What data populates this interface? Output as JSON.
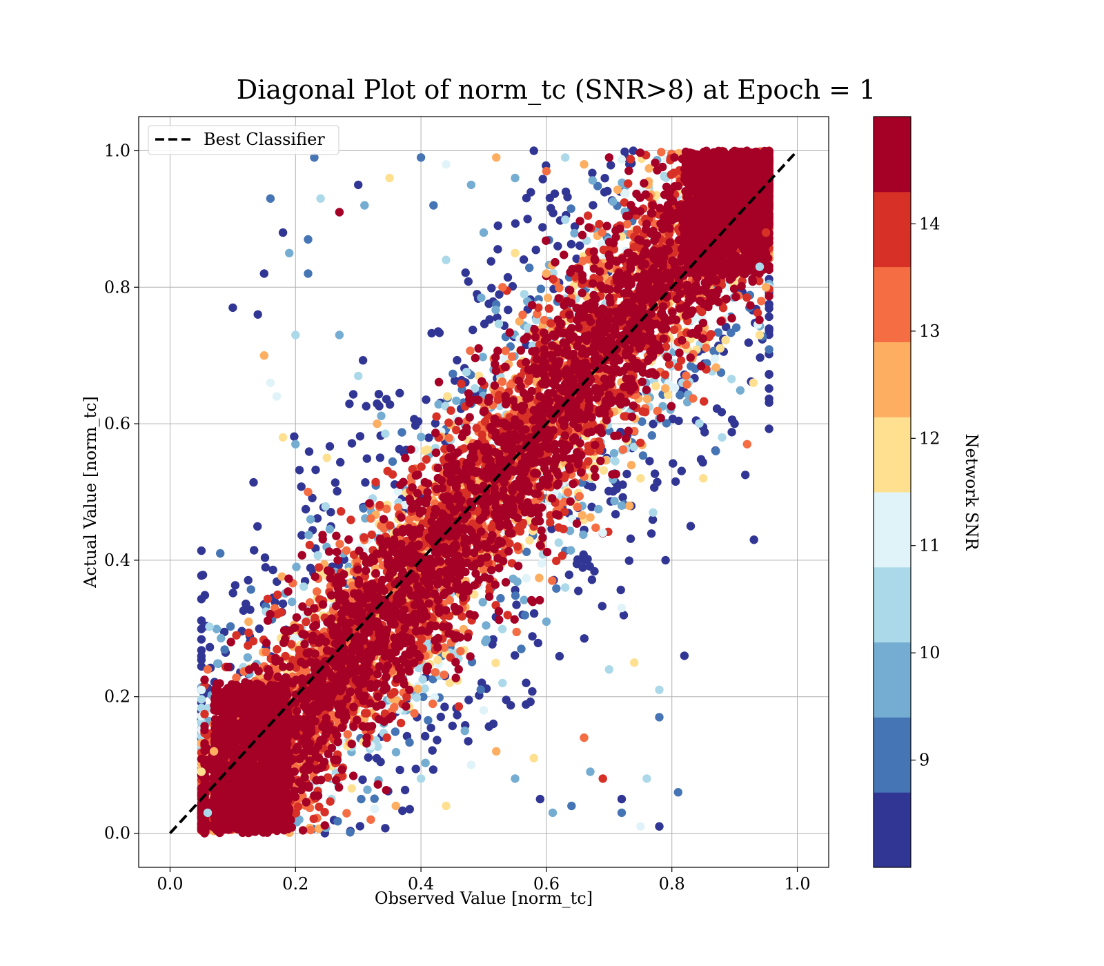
{
  "chart_data": {
    "type": "scatter",
    "title": "Diagonal Plot of norm_tc (SNR>8) at Epoch = 1",
    "xlabel": "Observed Value [norm_tc]",
    "ylabel": "Actual Value [norm_tc]",
    "xlim": [
      -0.05,
      1.05
    ],
    "ylim": [
      -0.05,
      1.05
    ],
    "xticks": [
      "0.0",
      "0.2",
      "0.4",
      "0.6",
      "0.8",
      "1.0"
    ],
    "yticks": [
      "0.0",
      "0.2",
      "0.4",
      "0.6",
      "0.8",
      "1.0"
    ],
    "grid": true,
    "legend": {
      "placement": "upper-left",
      "entries": [
        "Best Classifier"
      ]
    },
    "reference_line": {
      "name": "Best Classifier",
      "x": [
        0,
        1
      ],
      "y": [
        0,
        1
      ],
      "style": "dashed",
      "color": "#000000"
    },
    "colorbar": {
      "label": "Network SNR",
      "range": [
        8.0,
        15.0
      ],
      "ticks": [
        "9",
        "10",
        "11",
        "12",
        "13",
        "14"
      ],
      "tick_values": [
        9,
        10,
        11,
        12,
        13,
        14
      ],
      "colors": [
        "#313695",
        "#4575b4",
        "#74add1",
        "#abd9e9",
        "#e0f3f8",
        "#fee090",
        "#fdae61",
        "#f46d43",
        "#d73027",
        "#a50026"
      ]
    },
    "series": [
      {
        "description_points": "representative sample of plotted points (x, y, snr)",
        "points": [
          [
            0.06,
            0.24,
            13.5
          ],
          [
            0.05,
            0.21,
            11.2
          ],
          [
            0.07,
            0.12,
            12.5
          ],
          [
            0.05,
            0.09,
            11.8
          ],
          [
            0.06,
            0.03,
            10.3
          ],
          [
            0.08,
            0.41,
            9.2
          ],
          [
            0.1,
            0.77,
            8.4
          ],
          [
            0.14,
            0.76,
            8.3
          ],
          [
            0.15,
            0.82,
            8.5
          ],
          [
            0.16,
            0.93,
            9.1
          ],
          [
            0.18,
            0.88,
            8.6
          ],
          [
            0.19,
            0.85,
            9.4
          ],
          [
            0.2,
            0.73,
            10.4
          ],
          [
            0.22,
            0.82,
            9.0
          ],
          [
            0.22,
            0.87,
            9.3
          ],
          [
            0.23,
            0.99,
            9.2
          ],
          [
            0.27,
            0.91,
            14.5
          ],
          [
            0.31,
            0.92,
            9.6
          ],
          [
            0.3,
            0.95,
            8.5
          ],
          [
            0.24,
            0.93,
            10.5
          ],
          [
            0.35,
            0.96,
            12.2
          ],
          [
            0.4,
            0.99,
            9.0
          ],
          [
            0.42,
            0.92,
            8.8
          ],
          [
            0.44,
            0.98,
            11.1
          ],
          [
            0.48,
            0.95,
            9.8
          ],
          [
            0.52,
            0.99,
            12.7
          ],
          [
            0.55,
            0.96,
            10.1
          ],
          [
            0.58,
            1.0,
            8.3
          ],
          [
            0.6,
            0.97,
            13.4
          ],
          [
            0.63,
            0.99,
            10.7
          ],
          [
            0.66,
            0.98,
            12.4
          ],
          [
            0.7,
            0.99,
            14.4
          ],
          [
            0.44,
            0.84,
            10.2
          ],
          [
            0.5,
            0.88,
            9.5
          ],
          [
            0.55,
            0.85,
            11.6
          ],
          [
            0.57,
            0.9,
            8.7
          ],
          [
            0.53,
            0.8,
            13.2
          ],
          [
            0.6,
            0.82,
            12.6
          ],
          [
            0.15,
            0.7,
            12.3
          ],
          [
            0.16,
            0.66,
            11.4
          ],
          [
            0.17,
            0.64,
            10.8
          ],
          [
            0.18,
            0.58,
            12.1
          ],
          [
            0.2,
            0.57,
            9.6
          ],
          [
            0.22,
            0.5,
            13.6
          ],
          [
            0.25,
            0.55,
            11.7
          ],
          [
            0.33,
            0.6,
            12.4
          ],
          [
            0.3,
            0.67,
            10.2
          ],
          [
            0.27,
            0.73,
            9.7
          ],
          [
            0.83,
            0.45,
            8.5
          ],
          [
            0.82,
            0.26,
            8.4
          ],
          [
            0.81,
            0.06,
            9.3
          ],
          [
            0.76,
            0.08,
            10.6
          ],
          [
            0.75,
            0.01,
            11.0
          ],
          [
            0.78,
            0.01,
            8.6
          ],
          [
            0.78,
            0.17,
            8.8
          ],
          [
            0.78,
            0.21,
            10.3
          ],
          [
            0.74,
            0.25,
            11.8
          ],
          [
            0.7,
            0.24,
            10.2
          ],
          [
            0.72,
            0.33,
            11.3
          ],
          [
            0.72,
            0.03,
            9.1
          ],
          [
            0.72,
            0.05,
            8.7
          ],
          [
            0.67,
            0.09,
            9.4
          ],
          [
            0.69,
            0.08,
            13.8
          ],
          [
            0.66,
            0.14,
            13.3
          ],
          [
            0.64,
            0.04,
            9.0
          ],
          [
            0.61,
            0.03,
            10.1
          ],
          [
            0.58,
            0.11,
            11.6
          ],
          [
            0.59,
            0.05,
            8.4
          ],
          [
            0.55,
            0.08,
            9.8
          ],
          [
            0.52,
            0.12,
            12.6
          ],
          [
            0.48,
            0.1,
            10.9
          ],
          [
            0.44,
            0.04,
            11.9
          ],
          [
            0.4,
            0.08,
            10.4
          ],
          [
            0.36,
            0.04,
            12.8
          ],
          [
            0.32,
            0.02,
            13.1
          ],
          [
            0.47,
            0.15,
            9.6
          ],
          [
            0.5,
            0.18,
            11.4
          ],
          [
            0.53,
            0.22,
            10.6
          ],
          [
            0.56,
            0.27,
            8.9
          ],
          [
            0.6,
            0.31,
            9.9
          ],
          [
            0.63,
            0.36,
            10.3
          ],
          [
            0.66,
            0.4,
            8.6
          ],
          [
            0.69,
            0.44,
            11.2
          ],
          [
            0.72,
            0.48,
            9.4
          ],
          [
            0.75,
            0.52,
            11.7
          ],
          [
            0.77,
            0.47,
            10.2
          ],
          [
            0.79,
            0.4,
            8.7
          ],
          [
            0.85,
            0.52,
            11.9
          ],
          [
            0.87,
            0.56,
            9.2
          ],
          [
            0.9,
            0.6,
            8.5
          ],
          [
            0.92,
            0.57,
            13.6
          ],
          [
            0.88,
            0.58,
            10.4
          ],
          [
            0.93,
            0.66,
            11.5
          ],
          [
            0.94,
            0.73,
            12.1
          ],
          [
            0.95,
            0.8,
            12.7
          ],
          [
            0.94,
            0.83,
            10.6
          ],
          [
            0.95,
            0.88,
            13.8
          ]
        ]
      }
    ],
    "density_note": "dense core along diagonal band dominated by SNR > 14"
  }
}
